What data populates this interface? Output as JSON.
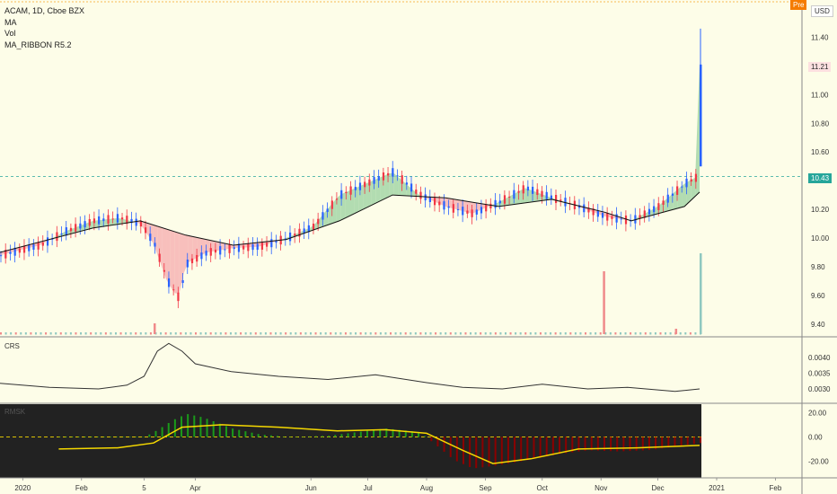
{
  "header": {
    "symbol_line": "ACAM, 1D, Cboe BZX",
    "indicators": [
      "MA",
      "Vol",
      "MA_RIBBON R5.2"
    ]
  },
  "badges": {
    "currency": "USD",
    "pre": "Pre",
    "last_price": "11.21",
    "mark_price": "10.43"
  },
  "panes": {
    "crs_label": "CRS",
    "rmsk_label": "RMSK"
  },
  "colors": {
    "up": "#2962ff",
    "down": "#f23645",
    "ribbon_up": "#a5d6a7",
    "ribbon_down": "#f7b4b4",
    "ma_line": "#111111",
    "crs_line": "#333333",
    "rmsk_up": "#1a9a1a",
    "rmsk_down": "#8b0000",
    "rmsk_signal": "#f5d800",
    "vol_up": "#8fc8c0",
    "vol_down": "#f08a8a",
    "bg": "#fdfde8"
  },
  "chart_data": [
    {
      "type": "candlestick",
      "title": "ACAM, 1D, Cboe BZX",
      "x_ticks": [
        "2020",
        "Feb",
        "5",
        "Apr",
        "Jun",
        "Jul",
        "Aug",
        "Sep",
        "Oct",
        "Nov",
        "Dec",
        "2021",
        "Feb"
      ],
      "y_ticks": [
        9.4,
        9.6,
        9.8,
        10.0,
        10.2,
        10.4,
        10.6,
        10.8,
        11.0,
        11.2,
        11.4
      ],
      "ylim": [
        9.33,
        11.66
      ],
      "price_series": [
        [
          "2019-12-20",
          9.88
        ],
        [
          "2020-01-10",
          9.95
        ],
        [
          "2020-01-24",
          10.05
        ],
        [
          "2020-02-07",
          10.12
        ],
        [
          "2020-02-21",
          10.14
        ],
        [
          "2020-03-03",
          10.1
        ],
        [
          "2020-03-10",
          9.96
        ],
        [
          "2020-03-17",
          9.7
        ],
        [
          "2020-03-23",
          9.58
        ],
        [
          "2020-03-27",
          9.82
        ],
        [
          "2020-04-07",
          9.9
        ],
        [
          "2020-04-21",
          9.93
        ],
        [
          "2020-05-05",
          9.94
        ],
        [
          "2020-05-19",
          10.0
        ],
        [
          "2020-06-02",
          10.08
        ],
        [
          "2020-06-16",
          10.3
        ],
        [
          "2020-06-30",
          10.38
        ],
        [
          "2020-07-14",
          10.46
        ],
        [
          "2020-07-28",
          10.3
        ],
        [
          "2020-08-11",
          10.22
        ],
        [
          "2020-08-25",
          10.17
        ],
        [
          "2020-09-08",
          10.25
        ],
        [
          "2020-09-22",
          10.35
        ],
        [
          "2020-10-06",
          10.28
        ],
        [
          "2020-10-20",
          10.22
        ],
        [
          "2020-11-03",
          10.15
        ],
        [
          "2020-11-17",
          10.12
        ],
        [
          "2020-12-01",
          10.22
        ],
        [
          "2020-12-15",
          10.38
        ],
        [
          "2020-12-22",
          10.43
        ],
        [
          "2020-12-23",
          11.21
        ]
      ],
      "ma_series": [
        [
          "2019-12-20",
          9.9
        ],
        [
          "2020-02-07",
          10.07
        ],
        [
          "2020-03-03",
          10.12
        ],
        [
          "2020-03-27",
          10.02
        ],
        [
          "2020-04-21",
          9.95
        ],
        [
          "2020-05-19",
          9.99
        ],
        [
          "2020-06-16",
          10.12
        ],
        [
          "2020-07-14",
          10.3
        ],
        [
          "2020-08-11",
          10.28
        ],
        [
          "2020-09-08",
          10.22
        ],
        [
          "2020-10-06",
          10.27
        ],
        [
          "2020-11-03",
          10.18
        ],
        [
          "2020-11-17",
          10.12
        ],
        [
          "2020-12-15",
          10.22
        ],
        [
          "2020-12-23",
          10.32
        ]
      ],
      "horizontal_lines": [
        10.43,
        11.66
      ]
    },
    {
      "type": "line",
      "title": "CRS",
      "y_ticks": [
        0.003,
        0.0035,
        0.004
      ],
      "ylim": [
        0.0026,
        0.0046
      ],
      "series": [
        {
          "values": [
            [
              "2019-12-20",
              0.00318
            ],
            [
              "2020-01-15",
              0.00305
            ],
            [
              "2020-02-10",
              0.003
            ],
            [
              "2020-02-25",
              0.00312
            ],
            [
              "2020-03-05",
              0.0034
            ],
            [
              "2020-03-12",
              0.0042
            ],
            [
              "2020-03-18",
              0.00445
            ],
            [
              "2020-03-25",
              0.0042
            ],
            [
              "2020-04-01",
              0.0038
            ],
            [
              "2020-04-20",
              0.00355
            ],
            [
              "2020-05-15",
              0.0034
            ],
            [
              "2020-06-10",
              0.0033
            ],
            [
              "2020-07-05",
              0.00345
            ],
            [
              "2020-08-01",
              0.0032
            ],
            [
              "2020-08-20",
              0.00305
            ],
            [
              "2020-09-10",
              0.003
            ],
            [
              "2020-10-01",
              0.00315
            ],
            [
              "2020-10-25",
              0.003
            ],
            [
              "2020-11-15",
              0.00305
            ],
            [
              "2020-12-10",
              0.00292
            ],
            [
              "2020-12-23",
              0.003
            ]
          ]
        }
      ]
    },
    {
      "type": "histogram",
      "title": "RMSK",
      "y_ticks": [
        20.0,
        0.0,
        -20.0
      ],
      "ylim": [
        -33,
        27
      ],
      "histogram": [
        [
          "2020-01-20",
          0
        ],
        [
          "2020-03-05",
          0
        ],
        [
          "2020-03-12",
          6
        ],
        [
          "2020-03-20",
          14
        ],
        [
          "2020-03-27",
          19
        ],
        [
          "2020-04-05",
          16
        ],
        [
          "2020-04-20",
          7
        ],
        [
          "2020-05-05",
          2
        ],
        [
          "2020-05-20",
          0
        ],
        [
          "2020-06-10",
          1
        ],
        [
          "2020-06-25",
          4
        ],
        [
          "2020-07-10",
          7
        ],
        [
          "2020-07-28",
          4
        ],
        [
          "2020-08-05",
          -6
        ],
        [
          "2020-08-15",
          -19
        ],
        [
          "2020-08-25",
          -26
        ],
        [
          "2020-09-05",
          -24
        ],
        [
          "2020-09-20",
          -20
        ],
        [
          "2020-10-10",
          -14
        ],
        [
          "2020-10-25",
          -11
        ],
        [
          "2020-11-10",
          -12
        ],
        [
          "2020-11-25",
          -11
        ],
        [
          "2020-12-10",
          -8
        ],
        [
          "2020-12-23",
          -5
        ]
      ],
      "signal": [
        [
          "2020-01-20",
          -10
        ],
        [
          "2020-02-20",
          -9
        ],
        [
          "2020-03-10",
          -5
        ],
        [
          "2020-03-25",
          8
        ],
        [
          "2020-04-15",
          10
        ],
        [
          "2020-05-15",
          8
        ],
        [
          "2020-06-15",
          5
        ],
        [
          "2020-07-10",
          6
        ],
        [
          "2020-08-01",
          3
        ],
        [
          "2020-08-20",
          -11
        ],
        [
          "2020-09-05",
          -22
        ],
        [
          "2020-09-25",
          -18
        ],
        [
          "2020-10-20",
          -10
        ],
        [
          "2020-11-20",
          -9
        ],
        [
          "2020-12-23",
          -7
        ]
      ]
    }
  ]
}
